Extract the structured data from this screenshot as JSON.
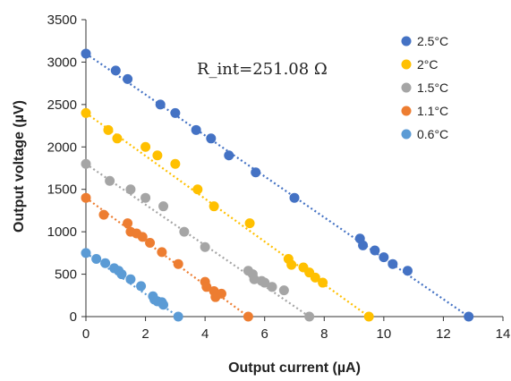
{
  "chart_data": {
    "type": "scatter",
    "title": "",
    "xlabel": "Output current (µA)",
    "ylabel": "Output voltage (µV)",
    "xlim": [
      0,
      14
    ],
    "ylim": [
      0,
      3500
    ],
    "xticks": [
      0,
      2,
      4,
      6,
      8,
      10,
      12,
      14
    ],
    "yticks": [
      0,
      500,
      1000,
      1500,
      2000,
      2500,
      3000,
      3500
    ],
    "grid": false,
    "legend_position": "top-right",
    "annotation": "R_int=251.08 Ω",
    "series": [
      {
        "name": "2.5°C",
        "color": "#4472C4",
        "x": [
          0,
          1.0,
          1.4,
          2.5,
          3.0,
          3.7,
          4.2,
          4.8,
          5.7,
          7.0,
          9.2,
          9.3,
          9.7,
          10.0,
          10.3,
          10.8,
          12.85
        ],
        "y": [
          3100,
          2900,
          2800,
          2500,
          2400,
          2200,
          2100,
          1900,
          1700,
          1400,
          920,
          840,
          780,
          700,
          620,
          540,
          0
        ],
        "trend": [
          [
            0,
            3100
          ],
          [
            12.85,
            0
          ]
        ]
      },
      {
        "name": "2°C",
        "color": "#FFC000",
        "x": [
          0,
          0.75,
          1.05,
          2.0,
          2.4,
          3.0,
          3.75,
          4.3,
          5.5,
          6.8,
          6.9,
          7.3,
          7.5,
          7.7,
          7.95,
          9.5
        ],
        "y": [
          2400,
          2200,
          2100,
          2000,
          1900,
          1800,
          1500,
          1300,
          1100,
          680,
          610,
          580,
          520,
          460,
          400,
          0
        ],
        "trend": [
          [
            0,
            2400
          ],
          [
            9.5,
            0
          ]
        ]
      },
      {
        "name": "1.5°C",
        "color": "#A5A5A5",
        "x": [
          0,
          0.8,
          1.5,
          2.0,
          2.6,
          3.3,
          4.0,
          5.45,
          5.6,
          5.65,
          5.9,
          6.0,
          6.25,
          6.65,
          7.5
        ],
        "y": [
          1800,
          1600,
          1500,
          1400,
          1300,
          1000,
          820,
          540,
          500,
          440,
          420,
          400,
          350,
          310,
          0
        ],
        "trend": [
          [
            0,
            1800
          ],
          [
            7.5,
            0
          ]
        ]
      },
      {
        "name": "1.1°C",
        "color": "#ED7D31",
        "x": [
          0,
          0.6,
          1.4,
          1.5,
          1.7,
          1.9,
          2.15,
          2.55,
          3.1,
          4.0,
          4.05,
          4.3,
          4.35,
          4.55,
          5.45
        ],
        "y": [
          1400,
          1200,
          1100,
          1000,
          980,
          940,
          870,
          760,
          620,
          410,
          350,
          300,
          230,
          270,
          0
        ],
        "trend": [
          [
            0,
            1400
          ],
          [
            5.45,
            0
          ]
        ]
      },
      {
        "name": "0.6°C",
        "color": "#5B9BD5",
        "x": [
          0,
          0.35,
          0.65,
          0.95,
          1.1,
          1.2,
          1.5,
          1.85,
          2.25,
          2.3,
          2.4,
          2.55,
          2.6,
          3.1
        ],
        "y": [
          750,
          680,
          630,
          570,
          540,
          500,
          440,
          360,
          240,
          200,
          180,
          170,
          140,
          0
        ],
        "trend": [
          [
            0,
            750
          ],
          [
            3.1,
            0
          ]
        ]
      }
    ]
  }
}
